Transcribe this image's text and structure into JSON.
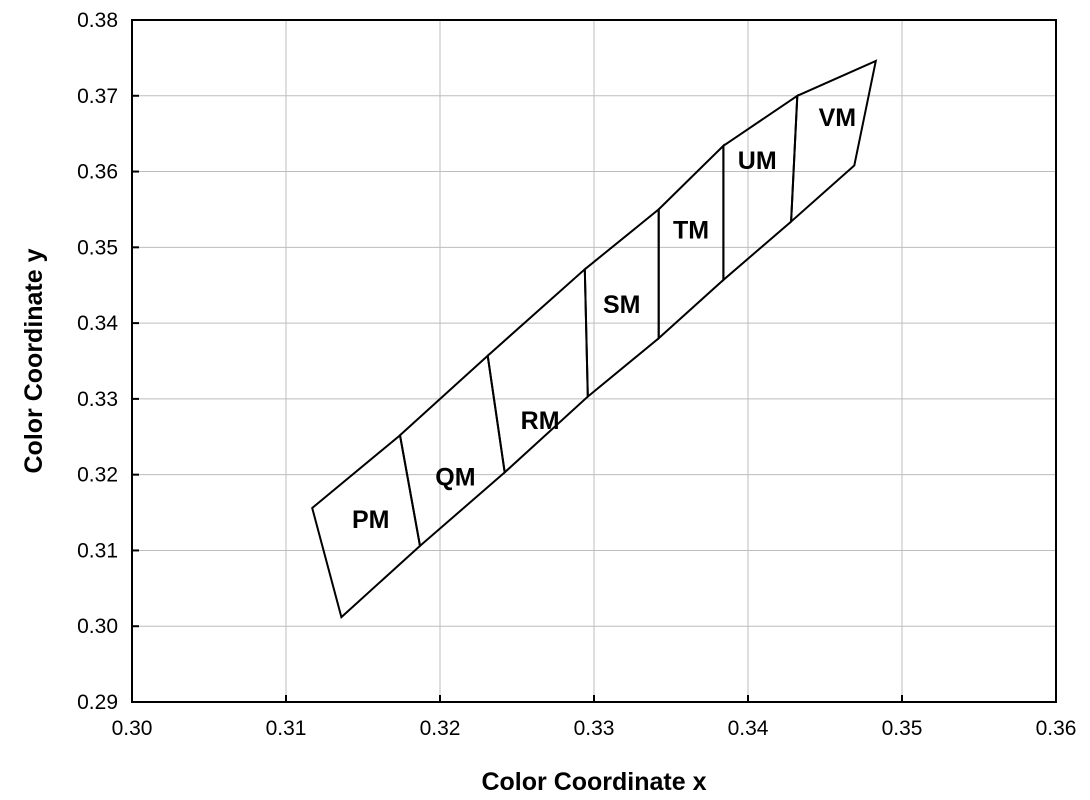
{
  "chart_data": {
    "type": "scatter",
    "title": "",
    "xlabel": "Color Coordinate x",
    "ylabel": "Color Coordinate y",
    "xlim": [
      0.3,
      0.36
    ],
    "ylim": [
      0.29,
      0.38
    ],
    "grid": true,
    "x_ticks": [
      "0.30",
      "0.31",
      "0.32",
      "0.33",
      "0.34",
      "0.35",
      "0.36"
    ],
    "y_ticks": [
      "0.29",
      "0.30",
      "0.31",
      "0.32",
      "0.33",
      "0.34",
      "0.35",
      "0.36",
      "0.37",
      "0.38"
    ],
    "x_tick_values": [
      0.3,
      0.31,
      0.32,
      0.33,
      0.34,
      0.35,
      0.36
    ],
    "y_tick_values": [
      0.29,
      0.3,
      0.31,
      0.32,
      0.33,
      0.34,
      0.35,
      0.36,
      0.37,
      0.38
    ],
    "bins": [
      {
        "name": "PM",
        "label_pos": [
          0.3155,
          0.314
        ],
        "vertices": [
          [
            0.3117,
            0.3156
          ],
          [
            0.3174,
            0.3252
          ],
          [
            0.3187,
            0.3106
          ],
          [
            0.3136,
            0.3012
          ]
        ]
      },
      {
        "name": "QM",
        "label_pos": [
          0.321,
          0.3196
        ],
        "vertices": [
          [
            0.3174,
            0.3252
          ],
          [
            0.3231,
            0.3357
          ],
          [
            0.3242,
            0.3203
          ],
          [
            0.3187,
            0.3106
          ]
        ]
      },
      {
        "name": "RM",
        "label_pos": [
          0.3265,
          0.3271
        ],
        "vertices": [
          [
            0.3231,
            0.3357
          ],
          [
            0.3294,
            0.3471
          ],
          [
            0.3296,
            0.3303
          ],
          [
            0.3242,
            0.3203
          ]
        ]
      },
      {
        "name": "SM",
        "label_pos": [
          0.3318,
          0.3424
        ],
        "vertices": [
          [
            0.3294,
            0.3471
          ],
          [
            0.3342,
            0.355
          ],
          [
            0.3342,
            0.338
          ],
          [
            0.3296,
            0.3303
          ]
        ]
      },
      {
        "name": "TM",
        "label_pos": [
          0.3363,
          0.3522
        ],
        "vertices": [
          [
            0.3342,
            0.355
          ],
          [
            0.3384,
            0.3634
          ],
          [
            0.3384,
            0.3457
          ],
          [
            0.3342,
            0.338
          ]
        ]
      },
      {
        "name": "UM",
        "label_pos": [
          0.3406,
          0.3614
        ],
        "vertices": [
          [
            0.3384,
            0.3634
          ],
          [
            0.3432,
            0.37
          ],
          [
            0.3428,
            0.3534
          ],
          [
            0.3384,
            0.3457
          ]
        ]
      },
      {
        "name": "VM",
        "label_pos": [
          0.3458,
          0.3671
        ],
        "vertices": [
          [
            0.3432,
            0.37
          ],
          [
            0.3483,
            0.3746
          ],
          [
            0.3469,
            0.3608
          ],
          [
            0.3428,
            0.3534
          ]
        ]
      }
    ]
  }
}
